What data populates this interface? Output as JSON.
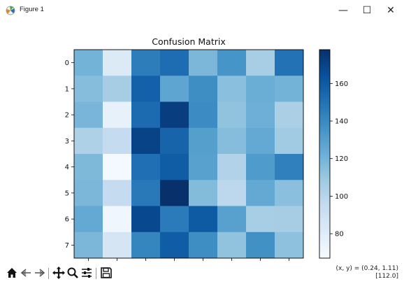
{
  "window": {
    "title": "Figure 1",
    "icon": "matplotlib-logo-icon",
    "controls": {
      "minimize": "—",
      "maximize": "☐",
      "close": "✕"
    }
  },
  "toolbar": {
    "buttons": [
      "home-icon",
      "back-icon",
      "forward-icon",
      "pan-icon",
      "zoom-icon",
      "configure-subplots-icon",
      "save-icon"
    ]
  },
  "status": {
    "coords": "(x, y) = (0.24, 1.11)",
    "value": "[112.0]"
  },
  "chart_data": {
    "type": "heatmap",
    "title": "Confusion Matrix",
    "x_tick_labels": [
      "0",
      "1",
      "2",
      "3",
      "4",
      "5",
      "6",
      "7"
    ],
    "y_tick_labels": [
      "0",
      "1",
      "2",
      "3",
      "4",
      "5",
      "6",
      "7"
    ],
    "values": [
      [
        120,
        82,
        145,
        152,
        118,
        135,
        105,
        150
      ],
      [
        115,
        106,
        157,
        127,
        138,
        114,
        123,
        120
      ],
      [
        119,
        76,
        153,
        172,
        139,
        112,
        122,
        104
      ],
      [
        103,
        95,
        170,
        156,
        130,
        115,
        125,
        108
      ],
      [
        117,
        69,
        151,
        159,
        129,
        102,
        132,
        144
      ],
      [
        118,
        95,
        147,
        178,
        116,
        98,
        125,
        114
      ],
      [
        125,
        71,
        168,
        146,
        160,
        129,
        105,
        106
      ],
      [
        118,
        86,
        142,
        159,
        138,
        112,
        137,
        113
      ]
    ],
    "colormap": "Blues",
    "vmin": 67,
    "vmax": 178,
    "colorbar_ticks": [
      80,
      100,
      120,
      140,
      160
    ]
  }
}
